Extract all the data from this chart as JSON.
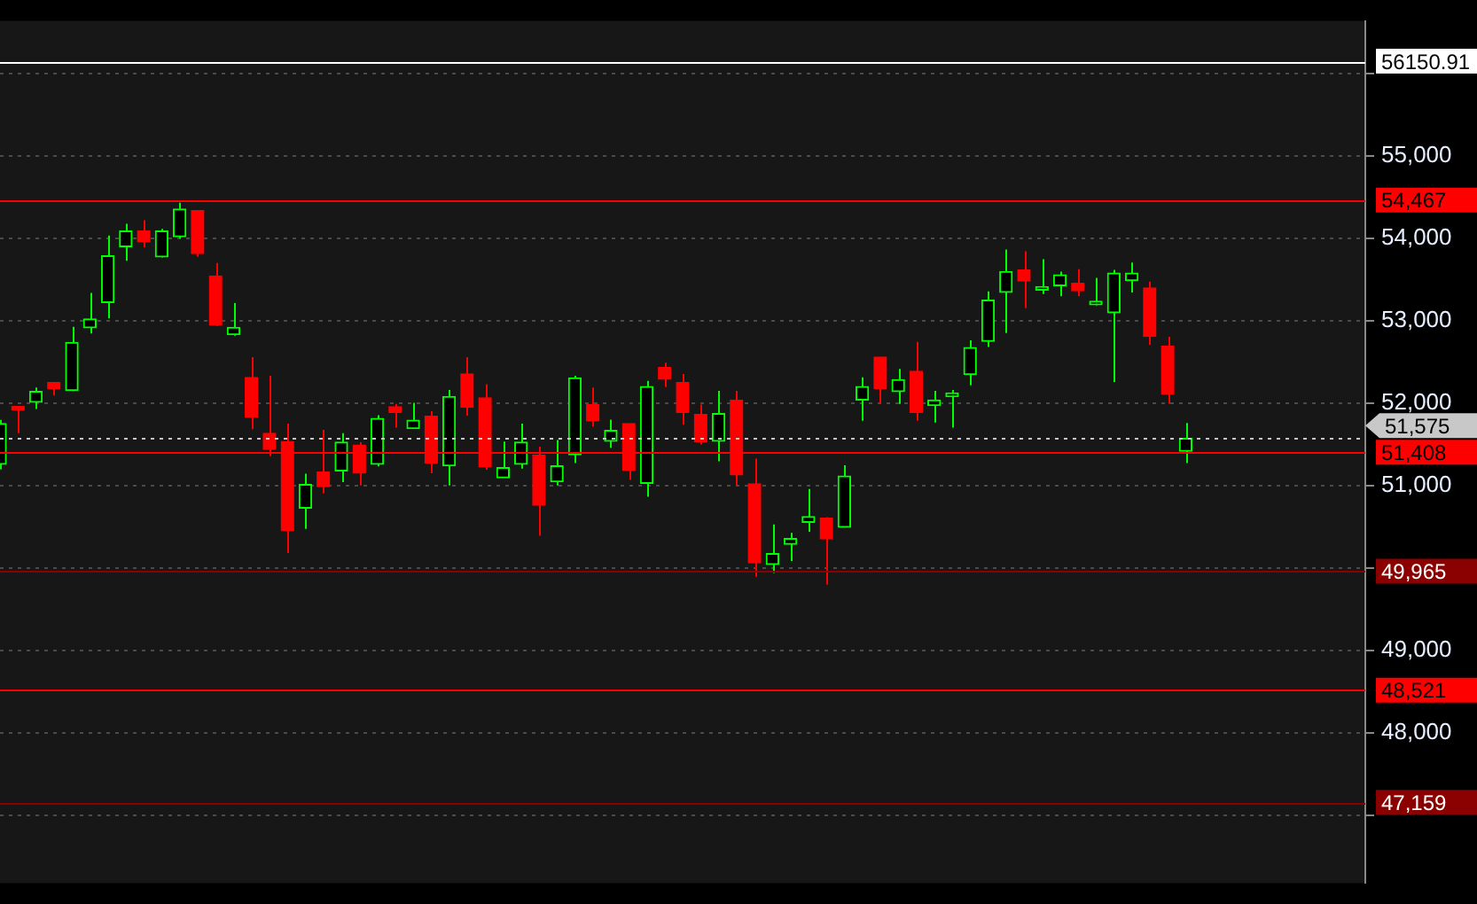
{
  "chart_data": {
    "type": "candlestick",
    "tick_labels": "y",
    "grid": "y",
    "categories": [
      null,
      null,
      null,
      null,
      null,
      null,
      null,
      null,
      null,
      null,
      null,
      null,
      null,
      null,
      null,
      null,
      null,
      null,
      null,
      null,
      null,
      null,
      null,
      null,
      null,
      null,
      null,
      null,
      null,
      null,
      null,
      null,
      null,
      null,
      null,
      null,
      null,
      null,
      null,
      null,
      null,
      null,
      null,
      null,
      null,
      null,
      null,
      null,
      null,
      null,
      null,
      null,
      null,
      null,
      null,
      null,
      null,
      null,
      null,
      null,
      null,
      null,
      null,
      null,
      null,
      null,
      null,
      null,
      null,
      null,
      null,
      null,
      null,
      null,
      null,
      null,
      null
    ],
    "ohlc": [
      [
        51262,
        51800,
        51200,
        51754
      ],
      [
        51940,
        51960,
        51638,
        51920
      ],
      [
        52014,
        52192,
        51932,
        52144
      ],
      [
        52253,
        52260,
        52096,
        52178
      ],
      [
        52157,
        52930,
        52150,
        52738
      ],
      [
        52916,
        53340,
        52848,
        53025
      ],
      [
        53223,
        54036,
        53032,
        53790
      ],
      [
        53900,
        54180,
        53729,
        54091
      ],
      [
        54091,
        54221,
        53893,
        53961
      ],
      [
        53777,
        54118,
        53770,
        54091
      ],
      [
        54023,
        54433,
        54000,
        54358
      ],
      [
        54337,
        54340,
        53777,
        53818
      ],
      [
        53545,
        53702,
        52936,
        52950
      ],
      [
        52834,
        53217,
        52820,
        52923
      ],
      [
        52315,
        52560,
        51686,
        51830
      ],
      [
        51638,
        52335,
        51358,
        51440
      ],
      [
        51536,
        51754,
        50183,
        50456
      ],
      [
        50729,
        51146,
        50476,
        51016
      ],
      [
        51167,
        51679,
        50907,
        50989
      ],
      [
        51180,
        51638,
        51044,
        51529
      ],
      [
        51494,
        51529,
        51003,
        51153
      ],
      [
        51262,
        51857,
        51235,
        51816
      ],
      [
        51959,
        51993,
        51706,
        51891
      ],
      [
        51693,
        52007,
        51693,
        51795
      ],
      [
        51843,
        51905,
        51153,
        51276
      ],
      [
        51242,
        52164,
        51003,
        52082
      ],
      [
        52356,
        52561,
        51850,
        51952
      ],
      [
        52068,
        52233,
        51194,
        51228
      ],
      [
        51098,
        51536,
        51098,
        51221
      ],
      [
        51262,
        51754,
        51208,
        51529
      ],
      [
        51372,
        51474,
        50395,
        50763
      ],
      [
        51050,
        51556,
        51003,
        51242
      ],
      [
        51378,
        52335,
        51276,
        52308
      ],
      [
        51986,
        52192,
        51720,
        51788
      ],
      [
        51542,
        51802,
        51460,
        51672
      ],
      [
        51754,
        51754,
        51071,
        51187
      ],
      [
        51030,
        52274,
        50866,
        52205
      ],
      [
        52438,
        52492,
        52198,
        52294
      ],
      [
        52253,
        52356,
        51741,
        51891
      ],
      [
        51864,
        51986,
        51501,
        51535
      ],
      [
        51542,
        52151,
        51296,
        51877
      ],
      [
        52041,
        52151,
        51003,
        51132
      ],
      [
        51023,
        51330,
        49896,
        50066
      ],
      [
        50046,
        50531,
        49943,
        50176
      ],
      [
        50292,
        50429,
        50087,
        50360
      ],
      [
        50558,
        50962,
        50442,
        50627
      ],
      [
        50606,
        50620,
        49800,
        50354
      ],
      [
        50497,
        51248,
        50497,
        51119
      ],
      [
        52041,
        52315,
        51788,
        52205
      ],
      [
        52561,
        52561,
        51993,
        52178
      ],
      [
        52144,
        52417,
        51993,
        52287
      ],
      [
        52390,
        52745,
        51788,
        51891
      ],
      [
        51973,
        52151,
        51768,
        52041
      ],
      [
        52082,
        52164,
        51706,
        52110
      ],
      [
        52349,
        52766,
        52219,
        52677
      ],
      [
        52752,
        53360,
        52684,
        53251
      ],
      [
        53346,
        53866,
        52854,
        53599
      ],
      [
        53620,
        53845,
        53155,
        53483
      ],
      [
        53374,
        53750,
        53326,
        53401
      ],
      [
        53428,
        53599,
        53299,
        53558
      ],
      [
        53456,
        53627,
        53299,
        53367
      ],
      [
        53196,
        53524,
        53189,
        53224
      ],
      [
        53100,
        53620,
        52260,
        53579
      ],
      [
        53490,
        53708,
        53346,
        53579
      ],
      [
        53401,
        53476,
        52711,
        52813
      ],
      [
        52697,
        52807,
        51993,
        52110
      ],
      [
        51419,
        51761,
        51276,
        51575
      ],
      null,
      null,
      null,
      null,
      null,
      null,
      null,
      null,
      null,
      null
    ],
    "colors": [
      "#00ff00",
      "#ff0000",
      "#00ff00",
      "#ff0000",
      "#00ff00",
      "#00ff00",
      "#00ff00",
      "#00ff00",
      "#ff0000",
      "#00ff00",
      "#00ff00",
      "#ff0000",
      "#ff0000",
      "#00ff00",
      "#ff0000",
      "#ff0000",
      "#ff0000",
      "#00ff00",
      "#ff0000",
      "#00ff00",
      "#ff0000",
      "#00ff00",
      "#ff0000",
      "#00ff00",
      "#ff0000",
      "#00ff00",
      "#ff0000",
      "#ff0000",
      "#00ff00",
      "#00ff00",
      "#ff0000",
      "#00ff00",
      "#00ff00",
      "#ff0000",
      "#00ff00",
      "#ff0000",
      "#00ff00",
      "#ff0000",
      "#ff0000",
      "#ff0000",
      "#00ff00",
      "#ff0000",
      "#ff0000",
      "#00ff00",
      "#00ff00",
      "#00ff00",
      "#ff0000",
      "#00ff00",
      "#00ff00",
      "#ff0000",
      "#00ff00",
      "#ff0000",
      "#00ff00",
      "#00ff00",
      "#00ff00",
      "#00ff00",
      "#00ff00",
      "#ff0000",
      "#00ff00",
      "#00ff00",
      "#ff0000",
      "#00ff00",
      "#00ff00",
      "#00ff00",
      "#ff0000",
      "#ff0000",
      "#00ff00",
      null,
      null,
      null,
      null,
      null,
      null,
      null,
      null,
      null,
      null
    ],
    "ylim": [
      46180,
      56640
    ],
    "yticks": [
      {
        "value": 47000,
        "label": null
      },
      {
        "value": 48000,
        "label": "48,000"
      },
      {
        "value": 49000,
        "label": "49,000"
      },
      {
        "value": 50000,
        "label": null
      },
      {
        "value": 51000,
        "label": "51,000"
      },
      {
        "value": 52000,
        "label": "52,000"
      },
      {
        "value": 53000,
        "label": "53,000"
      },
      {
        "value": 54000,
        "label": "54,000"
      },
      {
        "value": 55000,
        "label": "55,000"
      },
      {
        "value": 56000,
        "label": null
      }
    ],
    "ref_lines": [
      {
        "axis": "y",
        "value": 56150.91,
        "label": "56150.91",
        "color": "#ffffff"
      },
      {
        "axis": "y",
        "value": 54467,
        "label": "54,467",
        "color": "#ff0000"
      },
      {
        "axis": "y",
        "value": 51408,
        "label": "51,408",
        "color": "#ff0000"
      },
      {
        "axis": "y",
        "value": 49965,
        "label": "49,965",
        "color": "#8b0000"
      },
      {
        "axis": "y",
        "value": 48521,
        "label": "48,521",
        "color": "#ff0000"
      },
      {
        "axis": "y",
        "value": 47159,
        "label": "47,159",
        "color": "#8b0000"
      },
      {
        "axis": "y",
        "value": 51575,
        "label": "51,575",
        "color": "#c8c8c8",
        "line_style": "dotted"
      }
    ]
  }
}
